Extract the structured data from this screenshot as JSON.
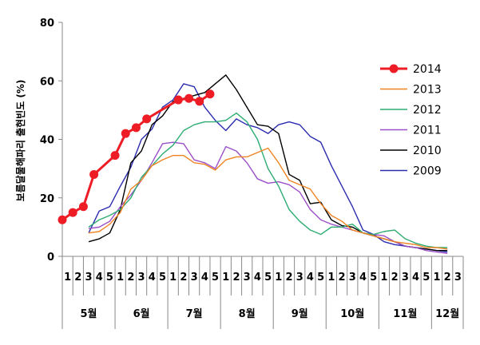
{
  "chart_data": {
    "type": "line",
    "title": "",
    "xlabel": "",
    "ylabel": "보름달물해파리 출현빈도 (%)",
    "ylim": [
      0,
      80
    ],
    "yticks": [
      0,
      20,
      40,
      60,
      80
    ],
    "grid": false,
    "legend_position": "right",
    "x_tick_labels": [
      "1",
      "2",
      "3",
      "4",
      "5",
      "1",
      "2",
      "3",
      "4",
      "5",
      "1",
      "2",
      "3",
      "4",
      "5",
      "1",
      "2",
      "3",
      "4",
      "5",
      "1",
      "2",
      "3",
      "4",
      "5",
      "1",
      "2",
      "3",
      "4",
      "5",
      "1",
      "2",
      "3",
      "4",
      "5",
      "1",
      "2",
      "3"
    ],
    "months": [
      {
        "label": "5월",
        "weeks": 5
      },
      {
        "label": "6월",
        "weeks": 5
      },
      {
        "label": "7월",
        "weeks": 5
      },
      {
        "label": "8월",
        "weeks": 5
      },
      {
        "label": "9월",
        "weeks": 5
      },
      {
        "label": "10월",
        "weeks": 5
      },
      {
        "label": "11월",
        "weeks": 5
      },
      {
        "label": "12월",
        "weeks": 3
      }
    ],
    "series": [
      {
        "name": "2014",
        "color": "#ee1c25",
        "marker": "circle",
        "points": [
          [
            -0.5,
            12.5
          ],
          [
            0.5,
            15
          ],
          [
            1.5,
            17
          ],
          [
            2.5,
            28
          ],
          [
            4.5,
            34.5
          ],
          [
            5.5,
            42
          ],
          [
            6.5,
            44
          ],
          [
            7.5,
            47
          ],
          [
            10.5,
            53.5
          ],
          [
            11.5,
            54
          ],
          [
            12.5,
            53
          ],
          [
            13.5,
            55.5
          ]
        ]
      },
      {
        "name": "2013",
        "color": "#f08322",
        "marker": "none",
        "points": [
          [
            2,
            8
          ],
          [
            3,
            8.5
          ],
          [
            4,
            11
          ],
          [
            5,
            15
          ],
          [
            6,
            23
          ],
          [
            7,
            26
          ],
          [
            8,
            31
          ],
          [
            9,
            33
          ],
          [
            10,
            34.5
          ],
          [
            11,
            34.5
          ],
          [
            12,
            32
          ],
          [
            13,
            31.5
          ],
          [
            14,
            29.5
          ],
          [
            15,
            33
          ],
          [
            16,
            34
          ],
          [
            17,
            34
          ],
          [
            18,
            35.5
          ],
          [
            19,
            37
          ],
          [
            20,
            32
          ],
          [
            21,
            26
          ],
          [
            22,
            24.5
          ],
          [
            23,
            23
          ],
          [
            24,
            18
          ],
          [
            25,
            14
          ],
          [
            26,
            12
          ],
          [
            27,
            9
          ],
          [
            28,
            8
          ],
          [
            29,
            7
          ],
          [
            30,
            6
          ],
          [
            31,
            5
          ],
          [
            32,
            4.5
          ],
          [
            33,
            4
          ],
          [
            34,
            3
          ],
          [
            35,
            3
          ],
          [
            36,
            2.5
          ]
        ]
      },
      {
        "name": "2012",
        "color": "#2eac73",
        "marker": "none",
        "points": [
          [
            2,
            10
          ],
          [
            3,
            12.5
          ],
          [
            4,
            14
          ],
          [
            5,
            16
          ],
          [
            6,
            20
          ],
          [
            7,
            27
          ],
          [
            8,
            31
          ],
          [
            9,
            35
          ],
          [
            10,
            38
          ],
          [
            11,
            43
          ],
          [
            12,
            45
          ],
          [
            13,
            46
          ],
          [
            14,
            46
          ],
          [
            15,
            46.5
          ],
          [
            16,
            49
          ],
          [
            17,
            46
          ],
          [
            18,
            40
          ],
          [
            19,
            30
          ],
          [
            20,
            24
          ],
          [
            21,
            16
          ],
          [
            22,
            12
          ],
          [
            23,
            9
          ],
          [
            24,
            7.5
          ],
          [
            25,
            10
          ],
          [
            26,
            10
          ],
          [
            27,
            11
          ],
          [
            28,
            8
          ],
          [
            29,
            7.5
          ],
          [
            30,
            8.5
          ],
          [
            31,
            9
          ],
          [
            32,
            6
          ],
          [
            33,
            4.5
          ],
          [
            34,
            3.5
          ],
          [
            35,
            3
          ],
          [
            36,
            3
          ]
        ]
      },
      {
        "name": "2011",
        "color": "#9b4fc8",
        "marker": "none",
        "points": [
          [
            2,
            9.5
          ],
          [
            3,
            10
          ],
          [
            4,
            12
          ],
          [
            5,
            17
          ],
          [
            6,
            21
          ],
          [
            7,
            26
          ],
          [
            8,
            32
          ],
          [
            9,
            38.5
          ],
          [
            10,
            39
          ],
          [
            11,
            38.5
          ],
          [
            12,
            33
          ],
          [
            13,
            32
          ],
          [
            14,
            30
          ],
          [
            15,
            37.5
          ],
          [
            16,
            36
          ],
          [
            17,
            32
          ],
          [
            18,
            26.5
          ],
          [
            19,
            25
          ],
          [
            20,
            25.5
          ],
          [
            21,
            24.5
          ],
          [
            22,
            22
          ],
          [
            23,
            16
          ],
          [
            24,
            12.5
          ],
          [
            25,
            11
          ],
          [
            26,
            10
          ],
          [
            27,
            9
          ],
          [
            28,
            8
          ],
          [
            29,
            7.5
          ],
          [
            30,
            7
          ],
          [
            31,
            5
          ],
          [
            32,
            3.5
          ],
          [
            33,
            3
          ],
          [
            34,
            2
          ],
          [
            35,
            1.5
          ],
          [
            36,
            1
          ]
        ]
      },
      {
        "name": "2010",
        "color": "#000000",
        "marker": "none",
        "points": [
          [
            2,
            5
          ],
          [
            3,
            6
          ],
          [
            4,
            8
          ],
          [
            5,
            16
          ],
          [
            6,
            32
          ],
          [
            7,
            36
          ],
          [
            8,
            45
          ],
          [
            9,
            48
          ],
          [
            10,
            53
          ],
          [
            11,
            54
          ],
          [
            12,
            55
          ],
          [
            13,
            56
          ],
          [
            14,
            59
          ],
          [
            15,
            62
          ],
          [
            16,
            57
          ],
          [
            17,
            51
          ],
          [
            18,
            45
          ],
          [
            19,
            44.5
          ],
          [
            20,
            42
          ],
          [
            21,
            28
          ],
          [
            22,
            26
          ],
          [
            23,
            18
          ],
          [
            24,
            18.5
          ],
          [
            25,
            12.5
          ],
          [
            26,
            10.5
          ],
          [
            27,
            10
          ],
          [
            28,
            8
          ],
          [
            29,
            7
          ],
          [
            30,
            6
          ],
          [
            31,
            5
          ],
          [
            32,
            3.5
          ],
          [
            33,
            3
          ],
          [
            34,
            2.5
          ],
          [
            35,
            2
          ],
          [
            36,
            2
          ]
        ]
      },
      {
        "name": "2009",
        "color": "#2c2cb0",
        "marker": "none",
        "points": [
          [
            2,
            8
          ],
          [
            3,
            15.5
          ],
          [
            4,
            17
          ],
          [
            5,
            24
          ],
          [
            6,
            30.5
          ],
          [
            7,
            40
          ],
          [
            8,
            43.5
          ],
          [
            9,
            51
          ],
          [
            10,
            53.5
          ],
          [
            11,
            59
          ],
          [
            12,
            58
          ],
          [
            13,
            51
          ],
          [
            14,
            46.5
          ],
          [
            15,
            43
          ],
          [
            16,
            47
          ],
          [
            17,
            45
          ],
          [
            18,
            44
          ],
          [
            19,
            42
          ],
          [
            20,
            45
          ],
          [
            21,
            46
          ],
          [
            22,
            45
          ],
          [
            23,
            41
          ],
          [
            24,
            39
          ],
          [
            25,
            31
          ],
          [
            26,
            24
          ],
          [
            27,
            17
          ],
          [
            28,
            9
          ],
          [
            29,
            7.5
          ],
          [
            30,
            5
          ],
          [
            31,
            4
          ],
          [
            32,
            3.5
          ],
          [
            33,
            3
          ],
          [
            34,
            2.5
          ],
          [
            35,
            2
          ],
          [
            36,
            1.5
          ]
        ]
      }
    ]
  }
}
